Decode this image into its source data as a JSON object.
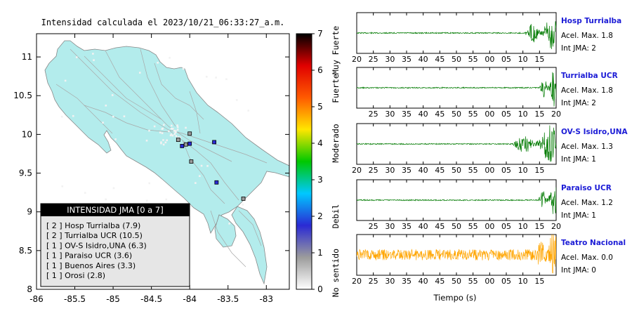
{
  "map": {
    "title": "Intensidad calculada el 2023/10/21_06:33:27_a.m.",
    "xticks": [
      "-86",
      "-85.5",
      "-85",
      "-84.5",
      "-84",
      "-83.5",
      "-83"
    ],
    "yticks": [
      "11",
      "10.5",
      "10",
      "9.5",
      "9",
      "8.5",
      "8"
    ],
    "xlim": [
      -86,
      -82.7
    ],
    "ylim": [
      8,
      11.3
    ],
    "land_color": "#b3ecec",
    "stations": [
      {
        "lon": -84.0,
        "lat": 9.88,
        "int": 2
      },
      {
        "lon": -84.1,
        "lat": 9.85,
        "int": 2
      },
      {
        "lon": -83.68,
        "lat": 9.9,
        "int": 2
      },
      {
        "lon": -84.05,
        "lat": 9.87,
        "int": 1
      },
      {
        "lon": -84.0,
        "lat": 10.01,
        "int": 1
      },
      {
        "lon": -84.15,
        "lat": 9.93,
        "int": 1
      },
      {
        "lon": -83.98,
        "lat": 9.65,
        "int": 1
      },
      {
        "lon": -83.65,
        "lat": 9.38,
        "int": 2
      },
      {
        "lon": -83.3,
        "lat": 9.17,
        "int": 1
      }
    ],
    "legend": {
      "header": "INTENSIDAD JMA [0 a 7]",
      "items": [
        "[ 2 ]  Hosp Turrialba (7.9)",
        "[ 2 ]  Turrialba UCR (10.5)",
        "[ 1 ]  OV-S Isidro,UNA (6.3)",
        "[ 1 ]  Paraiso UCR (3.6)",
        "[ 1 ]  Buenos Aires (3.3)",
        "[ 1 ]  Orosi (2.8)"
      ]
    }
  },
  "colorbar": {
    "ticks": [
      "0",
      "1",
      "2",
      "3",
      "4",
      "5",
      "6",
      "7"
    ],
    "labels": [
      "No sentido",
      "Debil",
      "Moderado",
      "Fuerte",
      "Muy Fuerte"
    ],
    "stops": [
      "#ffffff",
      "#9c9c9c",
      "#2a2ad4",
      "#00c8ff",
      "#00c800",
      "#ffe600",
      "#ff5a00",
      "#e00000",
      "#000000"
    ]
  },
  "chart_data": {
    "type": "line",
    "xlabel": "Tiempo (s)",
    "series": [
      {
        "name": "Hosp Turrialba",
        "accel": "Acel. Max. 1.8",
        "jma": "Int JMA: 2",
        "color": "#007a00",
        "ticks": [
          "20",
          "25",
          "30",
          "35",
          "40",
          "45",
          "50",
          "55",
          "00",
          "05",
          "10",
          "15"
        ],
        "tick_start": 20,
        "onset": 10.2,
        "noise": 0.03,
        "amp": 0.95
      },
      {
        "name": "Turrialba UCR",
        "accel": "Acel. Max. 1.8",
        "jma": "Int JMA: 2",
        "color": "#007a00",
        "ticks": [
          "25",
          "30",
          "35",
          "40",
          "45",
          "50",
          "55",
          "00",
          "05",
          "10",
          "15",
          "20"
        ],
        "tick_start": 25,
        "onset": 10.5,
        "noise": 0.03,
        "amp": 0.95
      },
      {
        "name": "OV-S Isidro,UNA",
        "accel": "Acel. Max. 1.3",
        "jma": "Int JMA: 1",
        "color": "#007a00",
        "ticks": [
          "20",
          "25",
          "30",
          "35",
          "40",
          "45",
          "50",
          "55",
          "00",
          "05",
          "10",
          "15"
        ],
        "tick_start": 20,
        "onset": 6.0,
        "noise": 0.03,
        "amp": 0.95
      },
      {
        "name": "Paraiso UCR",
        "accel": "Acel. Max. 1.2",
        "jma": "Int JMA: 1",
        "color": "#007a00",
        "ticks": [
          "25",
          "30",
          "35",
          "40",
          "45",
          "50",
          "55",
          "00",
          "05",
          "10",
          "15",
          "20"
        ],
        "tick_start": 25,
        "onset": 10.0,
        "noise": 0.03,
        "amp": 0.95
      },
      {
        "name": "Teatro Nacional",
        "accel": "Acel. Max. 0.0",
        "jma": "Int JMA: 0",
        "color": "#ffa500",
        "ticks": [
          "20",
          "25",
          "30",
          "35",
          "40",
          "45",
          "50",
          "55",
          "00",
          "05",
          "10",
          "15"
        ],
        "tick_start": 20,
        "onset": 14.0,
        "noise": 0.28,
        "amp": 0.95
      }
    ]
  }
}
